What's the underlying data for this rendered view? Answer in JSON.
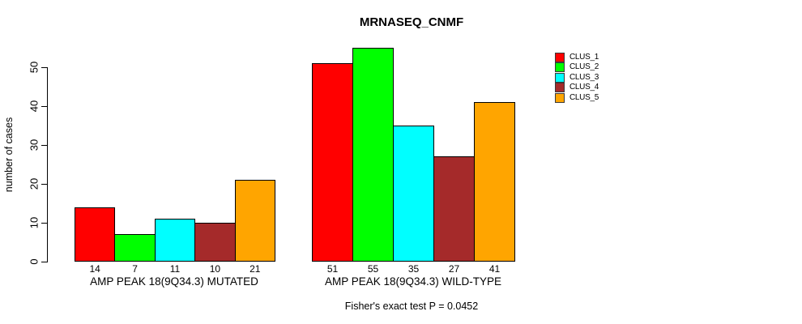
{
  "chart_data": {
    "type": "bar",
    "title": "MRNASEQ_CNMF",
    "ylabel": "number of cases",
    "xlabel": "",
    "ylim": [
      0,
      55
    ],
    "yticks": [
      0,
      10,
      20,
      30,
      40,
      50
    ],
    "categories": [
      "AMP PEAK 18(9Q34.3) MUTATED",
      "AMP PEAK 18(9Q34.3) WILD-TYPE"
    ],
    "series": [
      {
        "name": "CLUS_1",
        "color": "#FF0000",
        "values": [
          14,
          51
        ]
      },
      {
        "name": "CLUS_2",
        "color": "#00FF00",
        "values": [
          7,
          55
        ]
      },
      {
        "name": "CLUS_3",
        "color": "#00FFFF",
        "values": [
          11,
          35
        ]
      },
      {
        "name": "CLUS_4",
        "color": "#A52A2A",
        "values": [
          10,
          27
        ]
      },
      {
        "name": "CLUS_5",
        "color": "#FFA500",
        "values": [
          21,
          41
        ]
      }
    ],
    "bar_value_labels": true,
    "annotation": "Fisher's exact test P = 0.0452",
    "legend_position": "topright",
    "grid": false,
    "background": "#FFFFFF",
    "text_color": "#000000"
  }
}
